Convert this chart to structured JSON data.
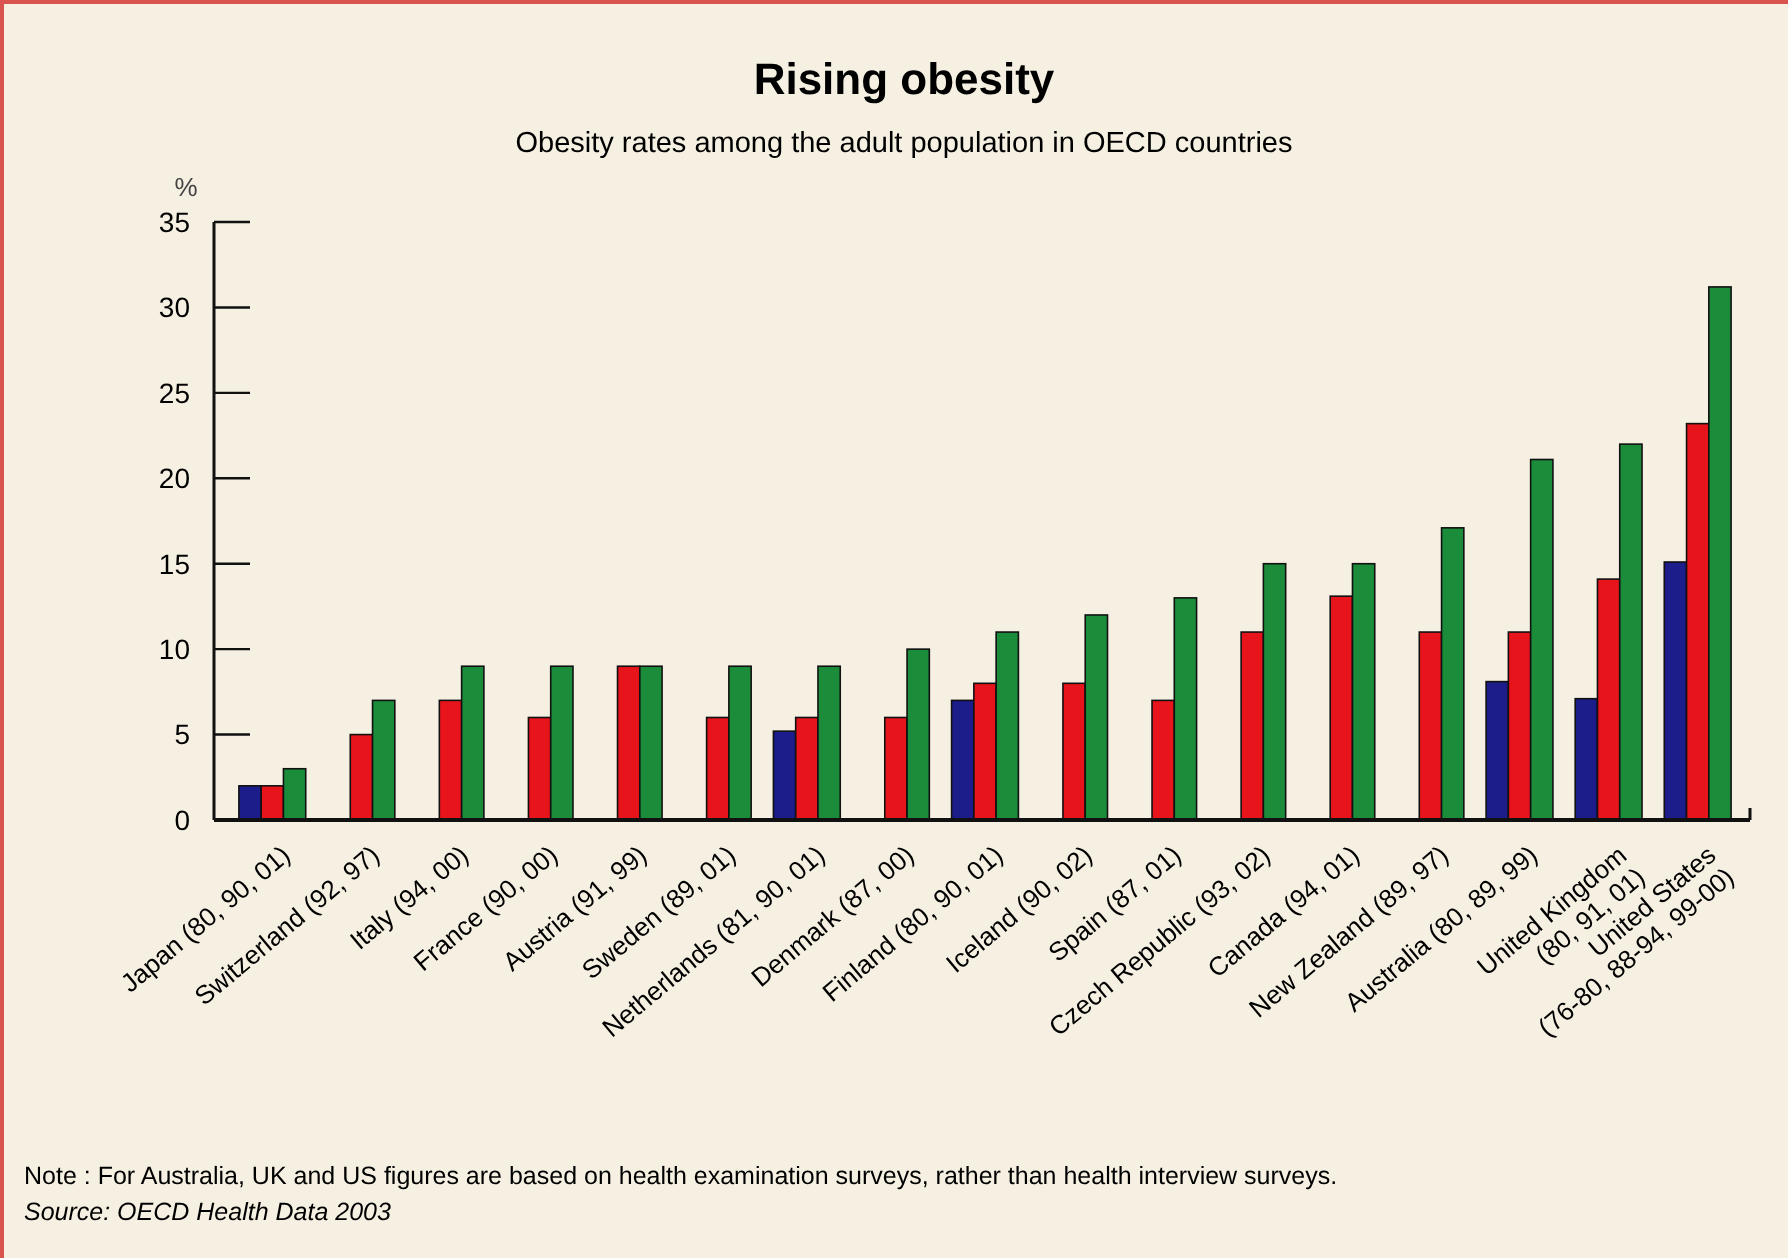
{
  "chart_data": {
    "type": "bar",
    "title": "Rising obesity",
    "subtitle": "Obesity rates among the adult population in OECD countries",
    "ylabel": "%",
    "categories": [
      "Japan (80, 90, 01)",
      "Switzerland (92, 97)",
      "Italy (94, 00)",
      "France (90, 00)",
      "Austria (91, 99)",
      "Sweden (89, 01)",
      "Netherlands (81, 90, 01)",
      "Denmark (87, 00)",
      "Finland (80, 90, 01)",
      "Iceland (90, 02)",
      "Spain (87, 01)",
      "Czech Republic (93, 02)",
      "Canada (94, 01)",
      "New Zealand (89, 97)",
      "Australia (80, 89, 99)",
      "United Kingdom\n(80, 91, 01)",
      "United States\n(76-80, 88-94, 99-00)"
    ],
    "series": [
      {
        "color": "#1c1c8a",
        "values": [
          2,
          null,
          null,
          null,
          null,
          null,
          5.2,
          null,
          7,
          null,
          null,
          null,
          null,
          null,
          8.1,
          7.1,
          15.1
        ]
      },
      {
        "color": "#e8141c",
        "values": [
          2,
          5,
          7,
          6,
          9,
          6,
          6,
          6,
          8,
          8,
          7,
          11,
          13.1,
          11,
          11,
          14.1,
          23.2
        ]
      },
      {
        "color": "#1a8c3a",
        "values": [
          3,
          7,
          9,
          9,
          9,
          9,
          9,
          10,
          11,
          12,
          13,
          15,
          15,
          17.1,
          21.1,
          22,
          31.2
        ]
      }
    ],
    "ylim": [
      0,
      35
    ],
    "yticks": [
      0,
      5,
      10,
      15,
      20,
      25,
      30,
      35
    ],
    "grid": false,
    "annotations": [
      "Note : For Australia, UK and US figures are based on health examination surveys, rather than health interview surveys.",
      "Source:  OECD Health Data 2003"
    ]
  }
}
